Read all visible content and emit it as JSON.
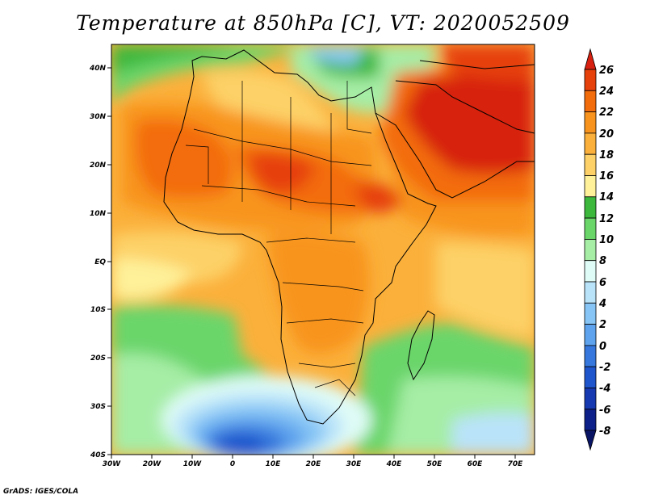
{
  "title": "Temperature at 850hPa [C], VT: 2020052509",
  "credit": "GrADS: IGES/COLA",
  "map": {
    "lon_range": [
      -30,
      75
    ],
    "lat_range": [
      -40,
      45
    ],
    "lon_ticks": [
      "30W",
      "20W",
      "10W",
      "0",
      "10E",
      "20E",
      "30E",
      "40E",
      "50E",
      "60E",
      "70E"
    ],
    "lat_ticks": [
      "40N",
      "30N",
      "20N",
      "10N",
      "EQ",
      "10S",
      "20S",
      "30S",
      "40S"
    ],
    "variable": "Temperature at 850hPa",
    "unit": "C"
  },
  "colorbar": {
    "labels": [
      "26",
      "24",
      "22",
      "20",
      "18",
      "16",
      "14",
      "12",
      "10",
      "8",
      "6",
      "4",
      "2",
      "0",
      "-2",
      "-4",
      "-6",
      "-8"
    ],
    "colors": [
      "#d7200f",
      "#e6410a",
      "#f36c0b",
      "#f8941e",
      "#fbb03b",
      "#fdd167",
      "#fef19a",
      "#3cb83c",
      "#6ad66a",
      "#a6eda6",
      "#e0fcf7",
      "#b9e3f9",
      "#86c5f5",
      "#5ea3ed",
      "#3577dc",
      "#1f55cc",
      "#1638b0",
      "#0d1f88",
      "#0a1464"
    ]
  }
}
